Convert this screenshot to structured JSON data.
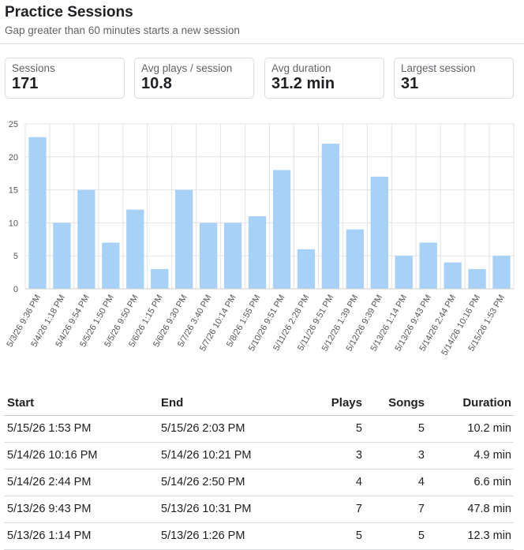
{
  "header": {
    "title": "Practice Sessions",
    "subtitle": "Gap greater than 60 minutes starts a new session"
  },
  "stats": [
    {
      "label": "Sessions",
      "value": "171"
    },
    {
      "label": "Avg plays / session",
      "value": "10.8"
    },
    {
      "label": "Avg duration",
      "value": "31.2 min"
    },
    {
      "label": "Largest session",
      "value": "31"
    }
  ],
  "chart_data": {
    "type": "bar",
    "categories": [
      "5/3/26 9:36 PM",
      "5/4/26 1:18 PM",
      "5/4/26 9:54 PM",
      "5/5/26 1:50 PM",
      "5/5/26 9:50 PM",
      "5/6/26 1:15 PM",
      "5/6/26 9:30 PM",
      "5/7/26 3:40 PM",
      "5/7/26 10:14 PM",
      "5/8/26 1:55 PM",
      "5/10/26 9:51 PM",
      "5/11/26 2:28 PM",
      "5/11/26 9:51 PM",
      "5/12/26 1:39 PM",
      "5/12/26 9:39 PM",
      "5/13/26 1:14 PM",
      "5/13/26 9:43 PM",
      "5/14/26 2:44 PM",
      "5/14/26 10:16 PM",
      "5/15/26 1:53 PM"
    ],
    "values": [
      23,
      10,
      15,
      7,
      12,
      3,
      15,
      10,
      10,
      11,
      18,
      6,
      22,
      9,
      17,
      5,
      7,
      4,
      3,
      5
    ],
    "yticks": [
      "0",
      "5",
      "10",
      "15",
      "20",
      "25"
    ],
    "ylim": [
      0,
      25
    ],
    "grid": true,
    "bar_color": "#a8d1f7",
    "title": "",
    "xlabel": "",
    "ylabel": ""
  },
  "table": {
    "headers": {
      "start": "Start",
      "end": "End",
      "plays": "Plays",
      "songs": "Songs",
      "duration": "Duration"
    },
    "rows": [
      {
        "start": "5/15/26 1:53 PM",
        "end": "5/15/26 2:03 PM",
        "plays": "5",
        "songs": "5",
        "duration": "10.2 min"
      },
      {
        "start": "5/14/26 10:16 PM",
        "end": "5/14/26 10:21 PM",
        "plays": "3",
        "songs": "3",
        "duration": "4.9 min"
      },
      {
        "start": "5/14/26 2:44 PM",
        "end": "5/14/26 2:50 PM",
        "plays": "4",
        "songs": "4",
        "duration": "6.6 min"
      },
      {
        "start": "5/13/26 9:43 PM",
        "end": "5/13/26 10:31 PM",
        "plays": "7",
        "songs": "7",
        "duration": "47.8 min"
      },
      {
        "start": "5/13/26 1:14 PM",
        "end": "5/13/26 1:26 PM",
        "plays": "5",
        "songs": "5",
        "duration": "12.3 min"
      }
    ]
  }
}
